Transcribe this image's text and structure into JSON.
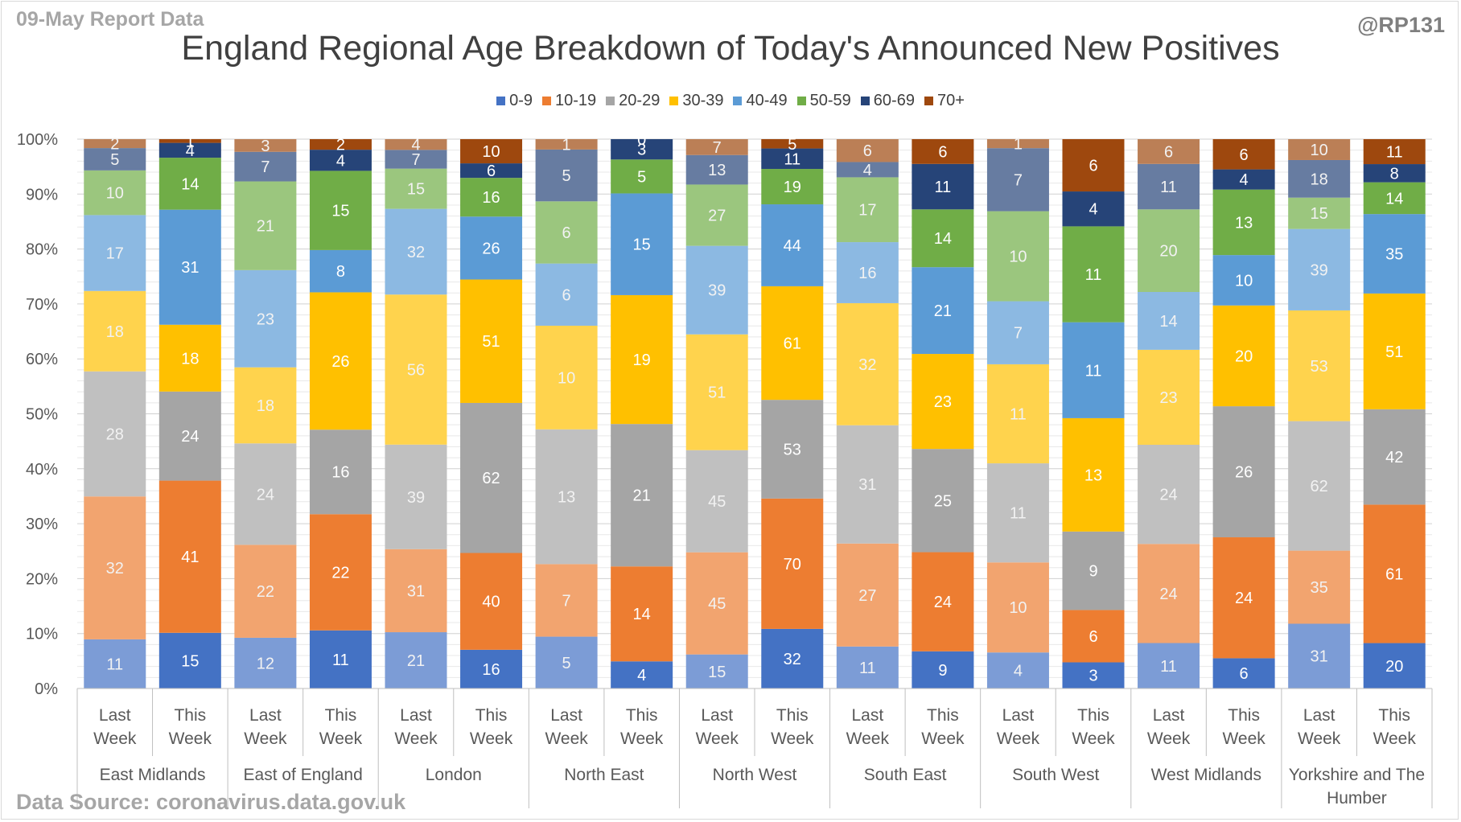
{
  "header": {
    "report_label": "09-May Report Data",
    "handle": "@RP131",
    "source": "Data Source: coronavirus.data.gov.uk"
  },
  "chart_data": {
    "type": "bar",
    "stacked": "percent",
    "title": "England Regional Age Breakdown of Today's Announced New Positives",
    "legend_position": "top",
    "grid": true,
    "ylim": [
      0,
      100
    ],
    "y_ticks": [
      "0%",
      "10%",
      "20%",
      "30%",
      "40%",
      "50%",
      "60%",
      "70%",
      "80%",
      "90%",
      "100%"
    ],
    "periods": [
      "Last Week",
      "This Week"
    ],
    "regions": [
      "East Midlands",
      "East of England",
      "London",
      "North East",
      "North West",
      "South East",
      "South West",
      "West Midlands",
      "Yorkshire and The Humber"
    ],
    "series": [
      {
        "name": "0-9",
        "color": "#4472c4",
        "values": [
          [
            11,
            15
          ],
          [
            12,
            11
          ],
          [
            21,
            16
          ],
          [
            5,
            4
          ],
          [
            15,
            32
          ],
          [
            11,
            9
          ],
          [
            4,
            3
          ],
          [
            11,
            6
          ],
          [
            31,
            20
          ]
        ]
      },
      {
        "name": "10-19",
        "color": "#ed7d31",
        "values": [
          [
            32,
            41
          ],
          [
            22,
            22
          ],
          [
            31,
            40
          ],
          [
            7,
            14
          ],
          [
            45,
            70
          ],
          [
            27,
            24
          ],
          [
            10,
            6
          ],
          [
            24,
            24
          ],
          [
            35,
            61
          ]
        ]
      },
      {
        "name": "20-29",
        "color": "#a5a5a5",
        "values": [
          [
            28,
            24
          ],
          [
            24,
            16
          ],
          [
            39,
            62
          ],
          [
            13,
            21
          ],
          [
            45,
            53
          ],
          [
            31,
            25
          ],
          [
            11,
            9
          ],
          [
            24,
            26
          ],
          [
            62,
            42
          ]
        ]
      },
      {
        "name": "30-39",
        "color": "#ffc000",
        "values": [
          [
            18,
            18
          ],
          [
            18,
            26
          ],
          [
            56,
            51
          ],
          [
            10,
            19
          ],
          [
            51,
            61
          ],
          [
            32,
            23
          ],
          [
            11,
            13
          ],
          [
            23,
            20
          ],
          [
            53,
            51
          ]
        ]
      },
      {
        "name": "40-49",
        "color": "#5b9bd5",
        "values": [
          [
            17,
            31
          ],
          [
            23,
            8
          ],
          [
            32,
            26
          ],
          [
            6,
            15
          ],
          [
            39,
            44
          ],
          [
            16,
            21
          ],
          [
            7,
            11
          ],
          [
            14,
            10
          ],
          [
            39,
            35
          ]
        ]
      },
      {
        "name": "50-59",
        "color": "#70ad47",
        "values": [
          [
            10,
            14
          ],
          [
            21,
            15
          ],
          [
            15,
            16
          ],
          [
            6,
            5
          ],
          [
            27,
            19
          ],
          [
            17,
            14
          ],
          [
            10,
            11
          ],
          [
            20,
            13
          ],
          [
            15,
            14
          ]
        ]
      },
      {
        "name": "60-69",
        "color": "#264478",
        "values": [
          [
            5,
            4
          ],
          [
            7,
            4
          ],
          [
            7,
            6
          ],
          [
            5,
            3
          ],
          [
            13,
            11
          ],
          [
            4,
            11
          ],
          [
            7,
            4
          ],
          [
            11,
            4
          ],
          [
            18,
            8
          ]
        ]
      },
      {
        "name": "70+",
        "color": "#9e480e",
        "values": [
          [
            2,
            1
          ],
          [
            3,
            2
          ],
          [
            4,
            10
          ],
          [
            1,
            0
          ],
          [
            7,
            5
          ],
          [
            6,
            6
          ],
          [
            1,
            6
          ],
          [
            6,
            6
          ],
          [
            10,
            11
          ]
        ]
      }
    ]
  }
}
